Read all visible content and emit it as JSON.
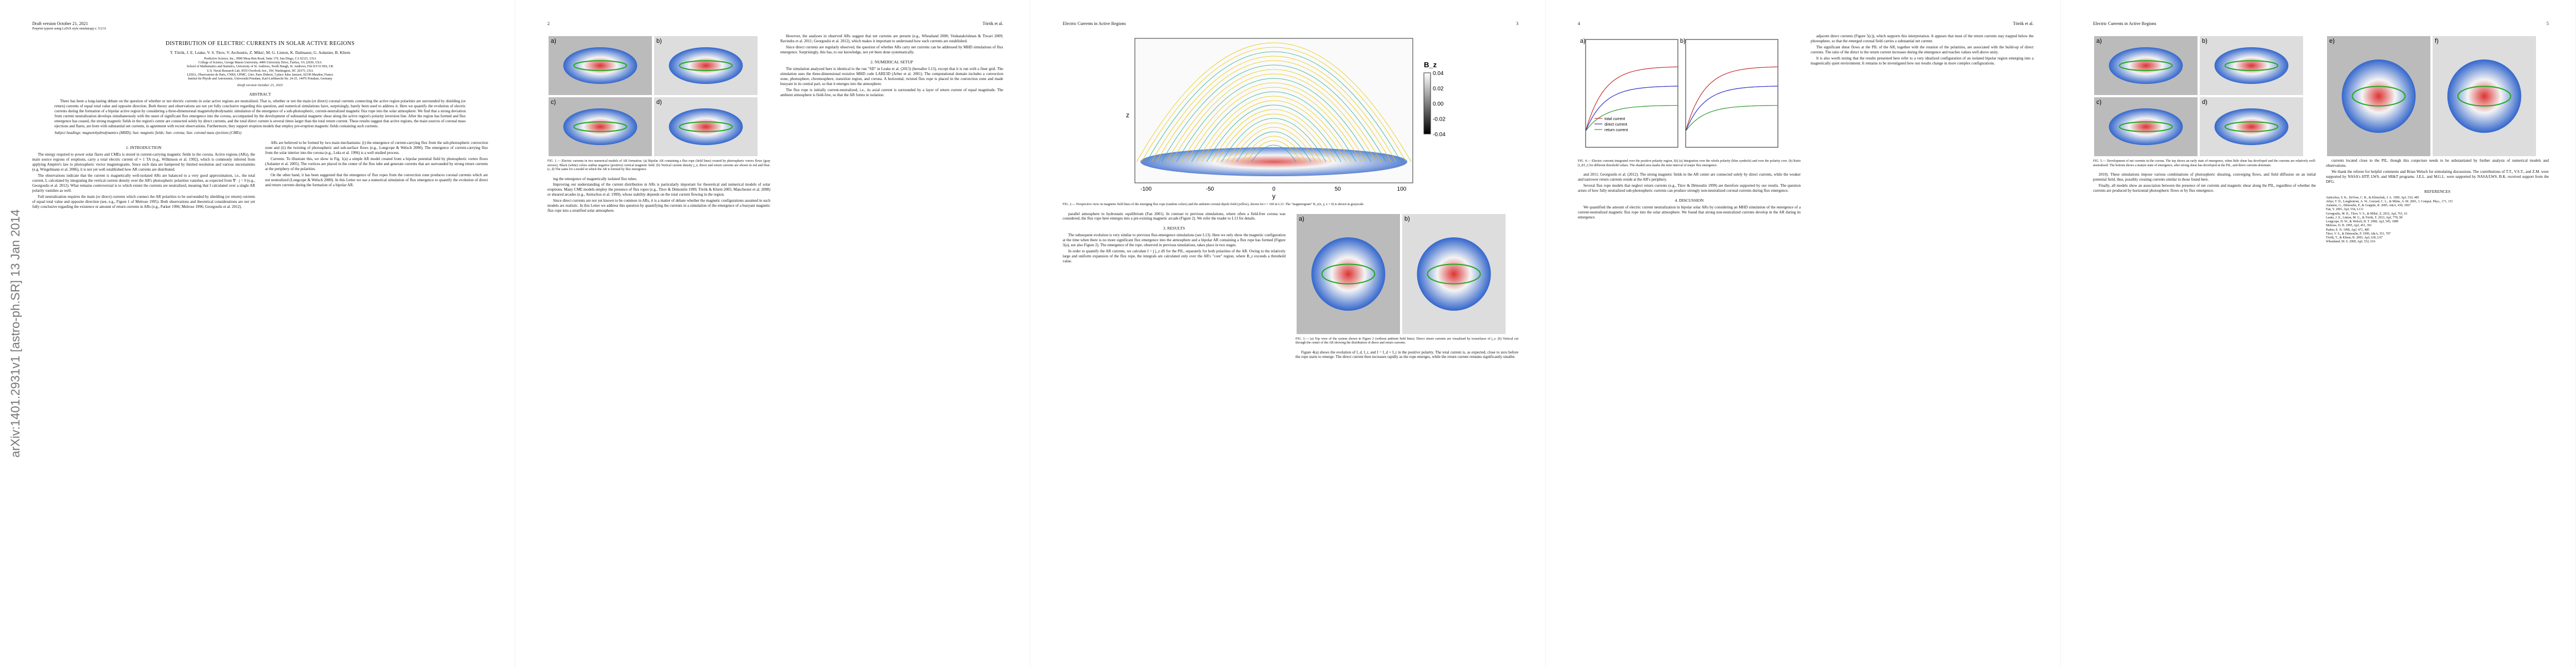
{
  "arxiv_stamp": "arXiv:1401.2931v1  [astro-ph.SR]  13 Jan 2014",
  "pages": [
    {
      "header_left": "Draft version October 21, 2021",
      "header_sub": "Preprint typeset using LaTeX style emulateapj v. 5/2/11",
      "top": [
        {
          "title": "DISTRIBUTION OF ELECTRIC CURRENTS IN SOLAR ACTIVE REGIONS"
        },
        {
          "authors": "T. Török, J. E. Leake, V. S. Titov, V. Archontis, Z. Mikić, M. G. Linton, K. Dalmasse, G. Aulanier, B. Kliem"
        },
        {
          "affiliations": [
            "Predictive Science, Inc., 9990 Mesa Rim Road, Suite 170, San Diego, CA 92121, USA",
            "College of Science, George Mason University, 4400 University Drive, Fairfax, VA 22030, USA",
            "School of Mathematics and Statistics, University of St. Andrews, North Haugh, St. Andrews, Fife KY16 9SS, UK",
            "U.S. Naval Research Lab, 4555 Overlook Ave., SW, Washington, DC 20375, USA",
            "LESIA, Observatoire de Paris, CNRS, UPMC, Univ. Paris Diderot, 5 place Jules Janssen, 92190 Meudon, France",
            "Institut für Physik und Astronomie, Universität Potsdam, Karl-Liebknecht-Str. 24-25, 14476 Potsdam, Germany"
          ]
        },
        {
          "center": "Draft version October 21, 2021"
        },
        {
          "heading": "ABSTRACT"
        },
        {
          "paragraph": "There has been a long-lasting debate on the question of whether or not electric currents in solar active regions are neutralized. That is, whether or not the main (or direct) coronal currents connecting the active region polarities are surrounded by shielding (or return) currents of equal total value and opposite direction. Both theory and observations are not yet fully conclusive regarding this question, and numerical simulations have, surprisingly, barely been used to address it. Here we quantify the evolution of electric currents during the formation of a bipolar active region by considering a three-dimensional magnetohydrodynamic simulation of the emergence of a sub-photospheric, current-neutralized magnetic flux rope into the solar atmosphere. We find that a strong deviation from current neutralization develops simultaneously with the onset of significant flux emergence into the corona, accompanied by the development of substantial magnetic shear along the active region's polarity inversion line. After the region has formed and flux emergence has ceased, the strong magnetic fields in the region's center are connected solely by direct currents, and the total direct current is several times larger than the total return current. These results suggest that active regions, the main sources of coronal mass ejections and flares, are born with substantial net currents, in agreement with recent observations. Furthermore, they support eruption models that employ pre-eruption magnetic fields containing such currents."
        },
        {
          "keywords": "Subject headings: magnetohydrodynamics (MHD); Sun: magnetic fields; Sun: corona; Sun: coronal mass ejections (CMEs)"
        }
      ],
      "columns": [
        [
          {
            "heading": "1. INTRODUCTION"
          },
          {
            "paragraph": "The energy required to power solar flares and CMEs is stored in current-carrying magnetic fields in the corona. Active regions (ARs), the main source regions of eruptions, carry a total electric current of ≈ 1 TA (e.g., Wilkinson et al. 1992), which is commonly inferred from applying Ampère's law to photospheric vector magnetograms. Since such data are hampered by limited resolution and various uncertainties (e.g. Wiegelmann et al. 2006), it is not yet well established how AR currents are distributed."
          },
          {
            "paragraph": "The observations indicate that the current is magnetically well-isolated ARs are balanced to a very good approximation, i.e., the total current, I, calculated by integrating the vertical current density over the AR's photospheric polarities vanishes, as expected from ∇ · j = 0 (e.g., Georgoulis et al. 2012). What remains controversial is to which extent the currents are neutralized, meaning that I calculated over a single AR polarity vanishes as well."
          },
          {
            "paragraph": "Full neutralization requires the main (or direct) currents which connect the AR polarities to be surrounded by shielding (or return) currents of equal total value and opposite direction (see, e.g., Figure 1 of Melrose 1995). Both observations and theoretical considerations are not yet fully conclusive regarding the existence or amount of return currents in ARs (e.g., Parker 1996; Melrose 1996; Georgoulis et al. 2012)."
          }
        ],
        [
          {
            "paragraph": "ARs are believed to be formed by two main mechanisms: (i) the emergence of current-carrying flux from the sub-photospheric convection zone and (ii) the twisting of photospheric and sub-surface flows (e.g., Longcope & Welsch 2000). The emergence of current-carrying flux from the solar interior into the corona (e.g., Leka et al. 1996) is a well studied process."
          },
          {
            "paragraph": "Currents. To illustrate this, we show in Fig. 1(a) a simple AR model created from a bipolar potential field by photospheric vortex flows (Aulanier et al. 2005). The vortices are placed in the center of the flux tube and generate currents that are surrounded by strong return currents at the periphery of the polarities."
          },
          {
            "paragraph": "On the other hand, it has been suggested that the emergence of flux ropes from the convection zone produces coronal currents which are not neutralized (Longcope & Welsch 2000). In this Letter we use a numerical simulation of flux emergence to quantify the evolution of direct and return currents during the formation of a bipolar AR."
          }
        ]
      ]
    },
    {
      "header_left": "2",
      "header_right": "Török et al.",
      "columns": [
        [
          {
            "figure": {
              "panel_labels": [
                "a)",
                "b)",
                "c)",
                "d)"
              ]
            }
          },
          {
            "caption": "FIG. 1.— Electric currents in two numerical models of AR formation. (a) Bipolar AR containing a flux rope (field lines) created by photospheric vortex flows (gray arrows). Black (white) colors outline negative (positive) vertical magnetic field. (b) Vertical current density j_z; direct and return currents are shown in red and blue. (c, d) The same for a model in which the AR is formed by flux emergence."
          },
          {
            "paragraph": "ing the emergence of magnetically isolated flux tubes."
          },
          {
            "paragraph": "Improving our understanding of the current distribution in ARs is particularly important for theoretical and numerical models of solar eruptions. Many CME models employ the presence of flux ropes (e.g., Titov & Démoulin 1999; Török & Kliem 2005; Manchester et al. 2008) or sheared arcades (e.g., Antiochos et al. 1999), whose stability depends on the total current flowing in the region."
          },
          {
            "paragraph": "Since direct currents are not yet known to be common in ARs, it is a matter of debate whether the magnetic configurations assumed in such models are realistic. In this Letter we address this question by quantifying the currents in a simulation of the emergence of a buoyant magnetic flux rope into a stratified solar atmosphere."
          }
        ],
        [
          {
            "paragraph": "However, the analyses in observed ARs suggest that net currents are present (e.g., Wheatland 2000; Venkatakrishnan & Tiwari 2009; Ravindra et al. 2011; Georgoulis et al. 2012), which makes it important to understand how such currents are established."
          },
          {
            "paragraph": "Since direct currents are regularly observed, the question of whether ARs carry net currents can be addressed by MHD simulations of flux emergence. Surprisingly, this has, to our knowledge, not yet been done systematically."
          },
          {
            "heading": "2. NUMERICAL SETUP"
          },
          {
            "paragraph": "The simulation analyzed here is identical to the run \"SD\" in Leake et al. (2013) (hereafter L13), except that it is run with a finer grid. The simulation uses the three-dimensional resistive MHD code LARE3D (Arber et al. 2001). The computational domain includes a convection zone, photosphere, chromosphere, transition region, and corona. A horizontal, twisted flux rope is placed in the convection zone and made buoyant in its central part, so that it emerges into the atmosphere."
          },
          {
            "paragraph": "The flux rope is initially current-neutralized, i.e., its axial current is surrounded by a layer of return current of equal magnitude. The ambient atmosphere is field-free, so that the AR forms in isolation."
          }
        ]
      ]
    },
    {
      "header_left": "Electric Currents in Active Regions",
      "header_right": "3",
      "top": [
        {
          "figure": {
            "axis_labels": [
              "z",
              "y"
            ],
            "x_ticks": [
              "-100",
              "-50",
              "0",
              "50",
              "100"
            ],
            "colorbar_label": "B_z",
            "colorbar_ticks": [
              "0.04",
              "0.02",
              "0.00",
              "-0.02",
              "-0.04"
            ]
          }
        },
        {
          "caption": "FIG. 2.— Perspective view on magnetic field lines of the emerging flux rope (random colors) and the ambient coronal dipole field (yellow), shown for t = 160 in L13. The \"magnetogram\" B_z(x, y, z = 0) is shown in grayscale."
        }
      ],
      "columns": [
        [
          {
            "paragraph": "parallel atmosphere in hydrostatic equilibrium (Fan 2001). In contrast to previous simulations, where often a field-free corona was considered, the flux rope here emerges into a pre-existing magnetic arcade (Figure 2). We refer the reader to L13 for details."
          },
          {
            "heading": "3. RESULTS"
          },
          {
            "paragraph": "The subsequent evolution is very similar to previous flux-emergence simulations (see L13). Here we only show the magnetic configuration at the time when there is no more significant flux emergence into the atmosphere and a bipolar AR containing a flux rope has formed (Figure 3(a), see also Figure 2). The emergence of the rope, observed in previous simulations, takes place in two stages."
          },
          {
            "paragraph": "In order to quantify the AR currents, we calculate I = ∫ j_z dS for the PIL, separately for both polarities of the AR. Owing to the relatively large and uniform expansion of the flux rope, the integrals are calculated only over the AR's \"core\" region, where B_z exceeds a threshold value."
          }
        ],
        [
          {
            "figure": {
              "panel_labels": [
                "a)",
                "b)"
              ]
            }
          },
          {
            "caption": "FIG. 3.— (a) Top view of the system shown in Figure 2 (without ambient field lines). Direct return currents are visualized by isosurfaces of j_z. (b) Vertical cut through the center of the AR showing the distribution of direct and return currents."
          },
          {
            "paragraph": "Figure 4(a) shows the evolution of I_d, I_r, and I = I_d + I_r in the positive polarity. The total current is, as expected, close to zero before the rope starts to emerge. The direct current then increases rapidly as the rope emerges, while the return current remains significantly smaller."
          }
        ]
      ]
    },
    {
      "header_left": "4",
      "header_right": "Török et al.",
      "columns": [
        [
          {
            "figure": {
              "panel_labels": [
                "a)",
                "b)"
              ],
              "legend": [
                "total current",
                "direct current",
                "return current"
              ]
            }
          },
          {
            "caption": "FIG. 4.— Electric currents integrated over the positive polarity region, I(t) (a) Integration over the whole polarity (blue symbols) and over the polarity core. (b) Ratio |I_d/I_r| for different threshold values. The shaded area marks the time interval of major flux emergence."
          },
          {
            "paragraph": "and 2011; Georgoulis et al. (2012). The strong magnetic fields in the AR center are connected solely by direct currents, while the weaker and narrower return currents reside at the AR's periphery."
          },
          {
            "paragraph": "Several flux rope models that neglect return currents (e.g., Titov & Démoulin 1999) are therefore supported by our results. The question arises of how fully neutralized sub-photospheric currents can produce strongly non-neutralized coronal currents during flux emergence."
          },
          {
            "heading": "4. DISCUSSION"
          },
          {
            "paragraph": "We quantified the amount of electric current neutralization in bipolar solar ARs by considering an MHD simulation of the emergence of a current-neutralized magnetic flux rope into the solar atmosphere. We found that strong non-neutralized currents develop in the AR during its emergence."
          }
        ],
        [
          {
            "paragraph": "adjacent direct currents (Figure 5(c)), which supports this interpretation. It appears that most of the return currents stay trapped below the photosphere, so that the emerged coronal field carries a substantial net current."
          },
          {
            "paragraph": "The significant shear flows at the PIL of the AR, together with the rotation of the polarities, are associated with the build-up of direct currents. The ratio of the direct to the return current increases during the emergence and reaches values well above unity."
          },
          {
            "paragraph": "It is also worth noting that the results presented here refer to a very idealized configuration of an isolated bipolar region emerging into a magnetically quiet environment. It remains to be investigated how our results change in more complex configurations."
          }
        ]
      ]
    },
    {
      "header_left": "Electric Currents in Active Regions",
      "header_right": "5",
      "columns": [
        [
          {
            "figure": {
              "panel_labels": [
                "a)",
                "b)",
                "c)",
                "d)"
              ]
            }
          },
          {
            "caption": "FIG. 5.— Development of net currents in the corona. The top shows an early state of emergence, when little shear has developed and the currents are relatively well-neutralized. The bottom shows a mature state of emergence, after strong shear has developed at the PIL, and direct currents dominate."
          },
          {
            "paragraph": "2010). These simulations impose various combinations of photospheric shearing, converging flows, and field diffusion on an initial potential field, thus, possibly creating currents similar to those found here."
          },
          {
            "paragraph": "Finally, all models show an association between the presence of net currents and magnetic shear along the PIL, regardless of whether the currents are produced by horizontal photospheric flows or by flux emergence."
          }
        ],
        [
          {
            "figure": {
              "panel_labels": [
                "e)",
                "f)"
              ]
            }
          },
          {
            "paragraph": "currents located close to the PIL, though this conjecture needs to be substantiated by further analysis of numerical models and observations."
          },
          {
            "paragraph": "We thank the referee for helpful comments and Brian Welsch for stimulating discussions. The contributions of T.T., V.S.T., and Z.M. were supported by NASA's HTP, LWS, and SR&T programs. J.E.L. and M.G.L. were supported by NASA/LWS. B.K. received support from the DFG."
          },
          {
            "heading": "REFERENCES"
          },
          {
            "references": [
              "Antiochos, S. K., DeVore, C. R., & Klimchuk, J. A. 1999, ApJ, 510, 485",
              "Arber, T. D., Longbottom, A. W., Gerrard, C. L., & Milne, A. M. 2001, J. Comput. Phys., 171, 151",
              "Aulanier, G., Démoulin, P., & Grappin, R. 2005, A&A, 430, 1067",
              "Fan, Y. 2001, ApJ, 554, L111",
              "Georgoulis, M. K., Titov, V. S., & Mikić, Z. 2012, ApJ, 761, 61",
              "Leake, J. E., Linton, M. G., & Török, T. 2013, ApJ, 778, 99",
              "Longcope, D. W., & Welsch, B. T. 2000, ApJ, 545, 1089",
              "Melrose, D. B. 1995, ApJ, 451, 391",
              "Parker, E. N. 1996, ApJ, 471, 485",
              "Titov, V. S., & Démoulin, P. 1999, A&A, 351, 707",
              "Török, T., & Kliem, B. 2005, ApJ, 630, L97",
              "Wheatland, M. S. 2000, ApJ, 532, 616"
            ]
          }
        ]
      ]
    }
  ]
}
